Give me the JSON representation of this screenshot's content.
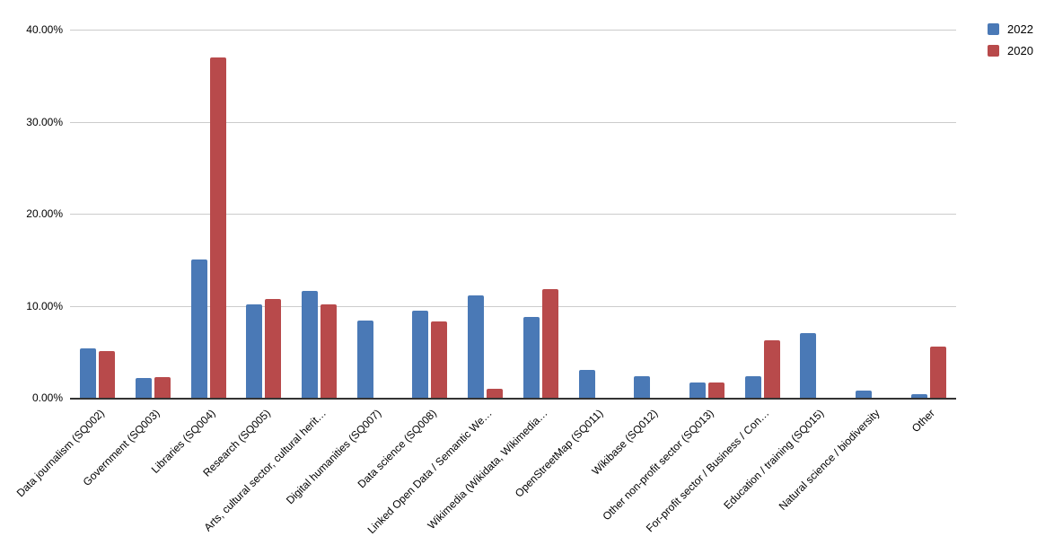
{
  "chart_data": {
    "type": "bar",
    "title": "",
    "xlabel": "",
    "ylabel": "",
    "ylim": [
      0,
      40
    ],
    "grid": true,
    "legend_position": "top-right",
    "y_ticks": [
      {
        "value": 0,
        "label": "0.00%"
      },
      {
        "value": 10,
        "label": "10.00%"
      },
      {
        "value": 20,
        "label": "20.00%"
      },
      {
        "value": 30,
        "label": "30.00%"
      },
      {
        "value": 40,
        "label": "40.00%"
      }
    ],
    "categories": [
      "Data journalism (SQ002)",
      "Government (SQ003)",
      "Libraries (SQ004)",
      "Research (SQ005)",
      "Arts, cultural sector, cultural herit…",
      "Digital humanities (SQ007)",
      "Data science (SQ008)",
      "Linked Open Data / Semantic We…",
      "Wikimedia (Wikidata, Wikimedia…",
      "OpenStreetMap (SQ011)",
      "Wikibase (SQ012)",
      "Other non-profit sector (SQ013)",
      "For-profit sector / Business / Con…",
      "Education / training (SQ015)",
      "Natural science / biodiversity",
      "Other"
    ],
    "series": [
      {
        "name": "2022",
        "color": "#4a79b6",
        "values": [
          5.4,
          2.1,
          15.0,
          10.1,
          11.6,
          8.4,
          9.5,
          11.1,
          8.8,
          3.0,
          2.3,
          1.7,
          2.3,
          7.0,
          0.8,
          0.4
        ]
      },
      {
        "name": "2020",
        "color": "#b84a4b",
        "values": [
          5.1,
          2.2,
          37.0,
          10.7,
          10.1,
          0,
          8.3,
          1.0,
          11.8,
          0,
          0,
          1.7,
          6.2,
          0,
          0,
          5.6
        ]
      }
    ],
    "colors": {
      "gridline": "#cccccc",
      "axis_line": "#333333",
      "text": "#000000",
      "background": "#ffffff"
    }
  }
}
